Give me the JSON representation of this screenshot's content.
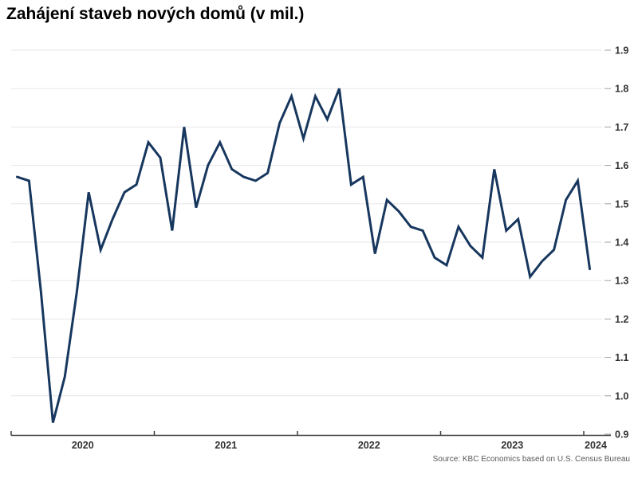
{
  "title": "Zahájení staveb nových domů (v mil.)",
  "source": "Source: KBC Economics based on U.S. Census Bureau",
  "colors": {
    "line": "#17375e",
    "grid": "#e7e7e7",
    "axis": "#3d3d3d",
    "tick_dash": "#a0a0a0",
    "tick_label": "#333333",
    "title_text": "#000000",
    "source_text": "#595959"
  },
  "chart_data": {
    "type": "line",
    "title": "Zahájení staveb nových domů (v mil.)",
    "xlabel": "",
    "ylabel": "",
    "ylim": [
      0.9,
      1.9
    ],
    "grid": "horizontal",
    "legend": "none",
    "y_axis_side": "right",
    "y_ticks": [
      0.9,
      1.0,
      1.1,
      1.2,
      1.3,
      1.4,
      1.5,
      1.6,
      1.7,
      1.8,
      1.9
    ],
    "x_tick_labels": [
      "2020",
      "2021",
      "2022",
      "2023",
      "2024"
    ],
    "x": [
      "2020-01",
      "2020-02",
      "2020-03",
      "2020-04",
      "2020-05",
      "2020-06",
      "2020-07",
      "2020-08",
      "2020-09",
      "2020-10",
      "2020-11",
      "2020-12",
      "2021-01",
      "2021-02",
      "2021-03",
      "2021-04",
      "2021-05",
      "2021-06",
      "2021-07",
      "2021-08",
      "2021-09",
      "2021-10",
      "2021-11",
      "2021-12",
      "2022-01",
      "2022-02",
      "2022-03",
      "2022-04",
      "2022-05",
      "2022-06",
      "2022-07",
      "2022-08",
      "2022-09",
      "2022-10",
      "2022-11",
      "2022-12",
      "2023-01",
      "2023-02",
      "2023-03",
      "2023-04",
      "2023-05",
      "2023-06",
      "2023-07",
      "2023-08",
      "2023-09",
      "2023-10",
      "2023-11",
      "2023-12",
      "2024-01"
    ],
    "values": [
      1.57,
      1.56,
      1.27,
      0.93,
      1.05,
      1.27,
      1.53,
      1.38,
      1.46,
      1.53,
      1.55,
      1.66,
      1.62,
      1.43,
      1.7,
      1.49,
      1.6,
      1.66,
      1.59,
      1.57,
      1.56,
      1.58,
      1.71,
      1.78,
      1.67,
      1.78,
      1.72,
      1.8,
      1.55,
      1.57,
      1.37,
      1.51,
      1.48,
      1.44,
      1.43,
      1.36,
      1.34,
      1.44,
      1.39,
      1.36,
      1.59,
      1.43,
      1.46,
      1.31,
      1.35,
      1.38,
      1.51,
      1.56,
      1.33
    ]
  }
}
